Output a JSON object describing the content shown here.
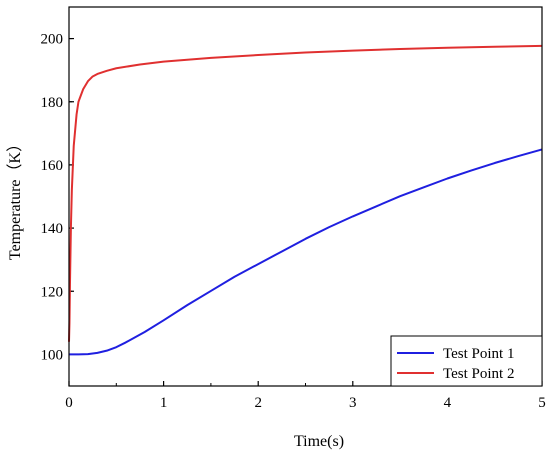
{
  "chart_data": {
    "type": "line",
    "title": "",
    "xlabel": "Time(s)",
    "ylabel": "Temperature（K）",
    "xlim": [
      0,
      5
    ],
    "ylim": [
      90,
      210
    ],
    "x_ticks": [
      0,
      1,
      2,
      3,
      4,
      5
    ],
    "y_ticks": [
      100,
      120,
      140,
      160,
      180,
      200
    ],
    "grid": false,
    "legend": "bottom-right",
    "series": [
      {
        "name": "Test Point 1",
        "color": "#1f1fe0",
        "x": [
          0,
          0.1,
          0.2,
          0.3,
          0.4,
          0.5,
          0.6,
          0.8,
          1.0,
          1.25,
          1.5,
          1.75,
          2.0,
          2.25,
          2.5,
          2.75,
          3.0,
          3.25,
          3.5,
          3.75,
          4.0,
          4.25,
          4.5,
          4.75,
          5.0
        ],
        "y": [
          100,
          100,
          100.1,
          100.5,
          101.2,
          102.3,
          103.8,
          107.1,
          110.8,
          115.6,
          120.1,
          124.6,
          128.6,
          132.6,
          136.6,
          140.3,
          143.7,
          146.9,
          150.1,
          152.9,
          155.7,
          158.2,
          160.6,
          162.8,
          164.9
        ]
      },
      {
        "name": "Test Point 2",
        "color": "#e03030",
        "x": [
          0,
          0.005,
          0.01,
          0.02,
          0.03,
          0.05,
          0.08,
          0.1,
          0.15,
          0.2,
          0.25,
          0.3,
          0.4,
          0.5,
          0.75,
          1.0,
          1.5,
          2.0,
          2.5,
          3.0,
          3.5,
          4.0,
          4.5,
          5.0
        ],
        "y": [
          104,
          110,
          122,
          140,
          152,
          166,
          176,
          180,
          184,
          186.5,
          188,
          188.8,
          189.8,
          190.6,
          191.8,
          192.7,
          193.9,
          194.8,
          195.6,
          196.2,
          196.7,
          197.1,
          197.4,
          197.7
        ]
      }
    ]
  }
}
